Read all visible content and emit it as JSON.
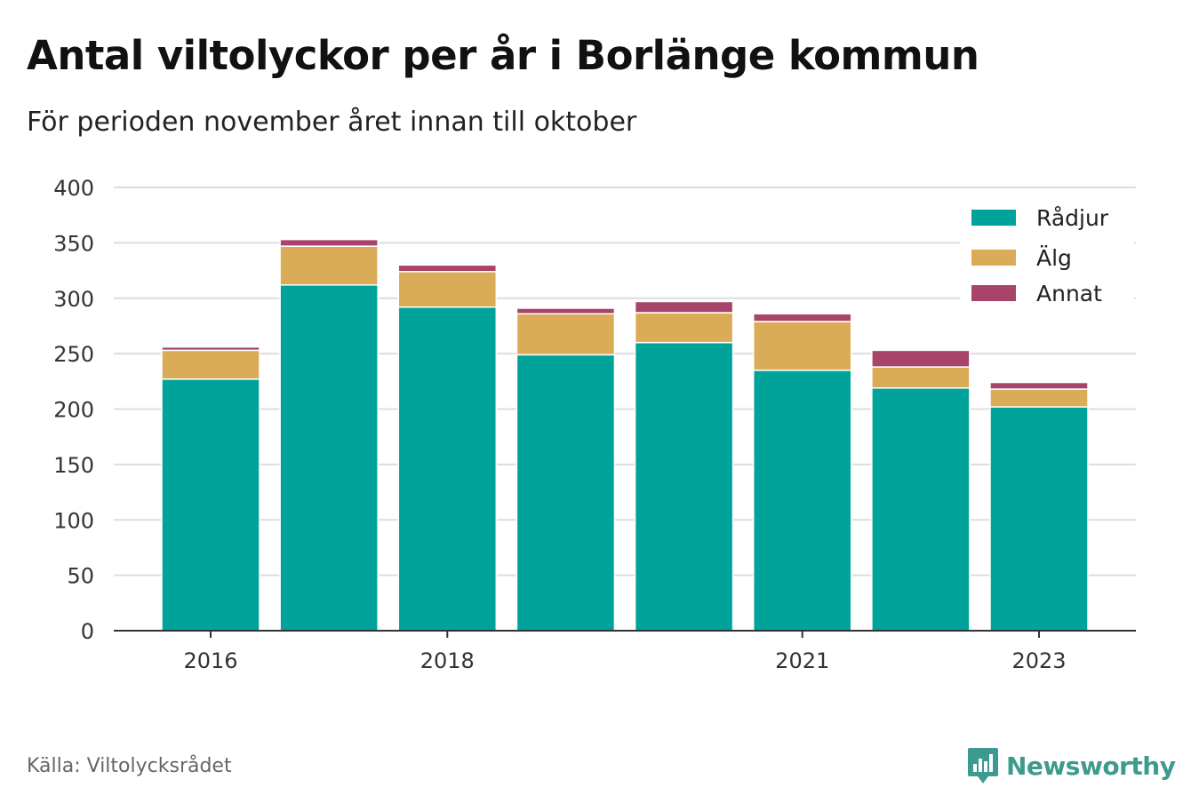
{
  "title": "Antal viltolyckor per år i Borlänge kommun",
  "subtitle": "För perioden november året innan till oktober",
  "source": "Källa: Viltolycksrådet",
  "logo": {
    "text": "Newsworthy",
    "icon": "newsworthy-chart-bubble-icon"
  },
  "colors": {
    "radjur": "#00a39a",
    "alg": "#dbac57",
    "annat": "#a84469",
    "grid": "#dddddd",
    "axis": "#333333"
  },
  "chart_data": {
    "type": "bar",
    "stacked": true,
    "categories": [
      "2016",
      "2017",
      "2018",
      "2019",
      "2020",
      "2021",
      "2022",
      "2023"
    ],
    "x_tick_labels": [
      "2016",
      "2018",
      "2021",
      "2023"
    ],
    "series": [
      {
        "name": "Rådjur",
        "color": "#00a39a",
        "values": [
          227,
          312,
          292,
          249,
          260,
          235,
          219,
          202
        ]
      },
      {
        "name": "Älg",
        "color": "#dbac57",
        "values": [
          26,
          35,
          32,
          37,
          27,
          44,
          19,
          16
        ]
      },
      {
        "name": "Annat",
        "color": "#a84469",
        "values": [
          3,
          6,
          6,
          5,
          10,
          7,
          15,
          6
        ]
      }
    ],
    "ylim": [
      0,
      400
    ],
    "yticks": [
      0,
      50,
      100,
      150,
      200,
      250,
      300,
      350,
      400
    ],
    "grid": true,
    "legend_position": "top-right"
  }
}
